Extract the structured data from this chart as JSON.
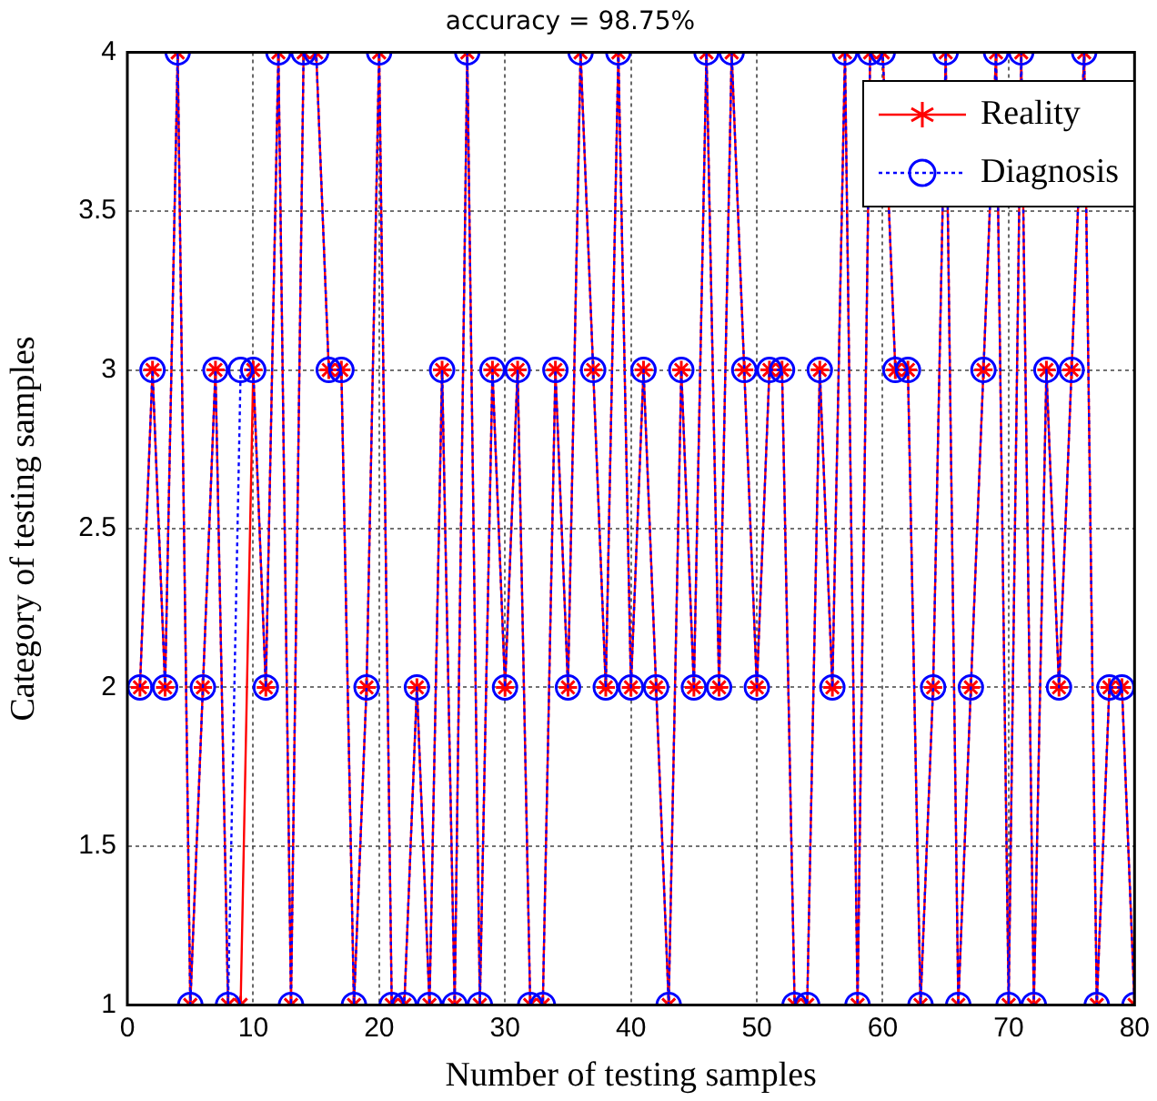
{
  "chart_data": {
    "type": "line",
    "title": "accuracy = 98.75%",
    "xlabel": "Number of testing samples",
    "ylabel": "Category of testing samples",
    "x": [
      1,
      2,
      3,
      4,
      5,
      6,
      7,
      8,
      9,
      10,
      11,
      12,
      13,
      14,
      15,
      16,
      17,
      18,
      19,
      20,
      21,
      22,
      23,
      24,
      25,
      26,
      27,
      28,
      29,
      30,
      31,
      32,
      33,
      34,
      35,
      36,
      37,
      38,
      39,
      40,
      41,
      42,
      43,
      44,
      45,
      46,
      47,
      48,
      49,
      50,
      51,
      52,
      53,
      54,
      55,
      56,
      57,
      58,
      59,
      60,
      61,
      62,
      63,
      64,
      65,
      66,
      67,
      68,
      69,
      70,
      71,
      72,
      73,
      74,
      75,
      76,
      77,
      78,
      79,
      80
    ],
    "series": [
      {
        "name": "Reality",
        "color": "#ff0000",
        "marker": "cross",
        "line_style": "solid",
        "values": [
          2,
          3,
          2,
          4,
          1,
          2,
          3,
          1,
          1,
          3,
          2,
          4,
          1,
          4,
          4,
          3,
          3,
          1,
          2,
          4,
          1,
          1,
          2,
          1,
          3,
          1,
          4,
          1,
          3,
          2,
          3,
          1,
          1,
          3,
          2,
          4,
          3,
          2,
          4,
          2,
          3,
          2,
          1,
          3,
          2,
          4,
          2,
          4,
          3,
          2,
          3,
          3,
          1,
          1,
          3,
          2,
          4,
          1,
          4,
          4,
          3,
          3,
          1,
          2,
          4,
          1,
          2,
          3,
          4,
          1,
          4,
          1,
          3,
          2,
          3,
          4,
          1,
          2,
          2,
          1
        ]
      },
      {
        "name": "Diagnosis",
        "color": "#0000ff",
        "marker": "circle",
        "line_style": "dotted",
        "values": [
          2,
          3,
          2,
          4,
          1,
          2,
          3,
          1,
          3,
          3,
          2,
          4,
          1,
          4,
          4,
          3,
          3,
          1,
          2,
          4,
          1,
          1,
          2,
          1,
          3,
          1,
          4,
          1,
          3,
          2,
          3,
          1,
          1,
          3,
          2,
          4,
          3,
          2,
          4,
          2,
          3,
          2,
          1,
          3,
          2,
          4,
          2,
          4,
          3,
          2,
          3,
          3,
          1,
          1,
          3,
          2,
          4,
          1,
          4,
          4,
          3,
          3,
          1,
          2,
          4,
          1,
          2,
          3,
          4,
          1,
          4,
          1,
          3,
          2,
          3,
          4,
          1,
          2,
          2,
          1
        ]
      }
    ],
    "xlim": [
      0,
      80
    ],
    "xticks": [
      0,
      10,
      20,
      30,
      40,
      50,
      60,
      70,
      80
    ],
    "ylim": [
      1,
      4
    ],
    "yticks": [
      1,
      1.5,
      2,
      2.5,
      3,
      3.5,
      4
    ],
    "grid": true,
    "legend": "top right"
  }
}
